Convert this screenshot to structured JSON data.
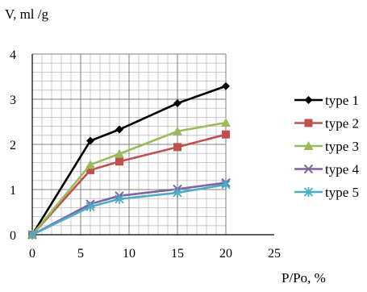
{
  "chart_data": {
    "type": "line",
    "title": "",
    "ylabel": "V, ml /g",
    "xlabel": "P/Po, %",
    "xlim": [
      0,
      25
    ],
    "ylim": [
      0,
      4
    ],
    "xticks": [
      0,
      5,
      10,
      15,
      20,
      25
    ],
    "yticks": [
      0,
      1,
      2,
      3,
      4
    ],
    "x_minor_step": 1,
    "y_minor_step": 0.2,
    "grid": true,
    "legend_position": "right",
    "series": [
      {
        "name": "type 1",
        "color": "#000000",
        "marker": "diamond",
        "x": [
          0,
          6,
          9,
          15,
          20
        ],
        "y": [
          0,
          2.08,
          2.33,
          2.91,
          3.29
        ]
      },
      {
        "name": "type 2",
        "color": "#c0504d",
        "marker": "square",
        "x": [
          0,
          6,
          9,
          15,
          20
        ],
        "y": [
          0,
          1.43,
          1.62,
          1.94,
          2.22
        ]
      },
      {
        "name": "type 3",
        "color": "#9bbb59",
        "marker": "triangle",
        "x": [
          0,
          6,
          9,
          15,
          20
        ],
        "y": [
          0,
          1.55,
          1.79,
          2.29,
          2.48
        ]
      },
      {
        "name": "type 4",
        "color": "#8064a2",
        "marker": "x",
        "x": [
          0,
          6,
          9,
          15,
          20
        ],
        "y": [
          0,
          0.68,
          0.86,
          1.01,
          1.15
        ]
      },
      {
        "name": "type 5",
        "color": "#4bacc6",
        "marker": "star",
        "x": [
          0,
          6,
          9,
          15,
          20
        ],
        "y": [
          0,
          0.62,
          0.79,
          0.93,
          1.11
        ]
      }
    ]
  }
}
